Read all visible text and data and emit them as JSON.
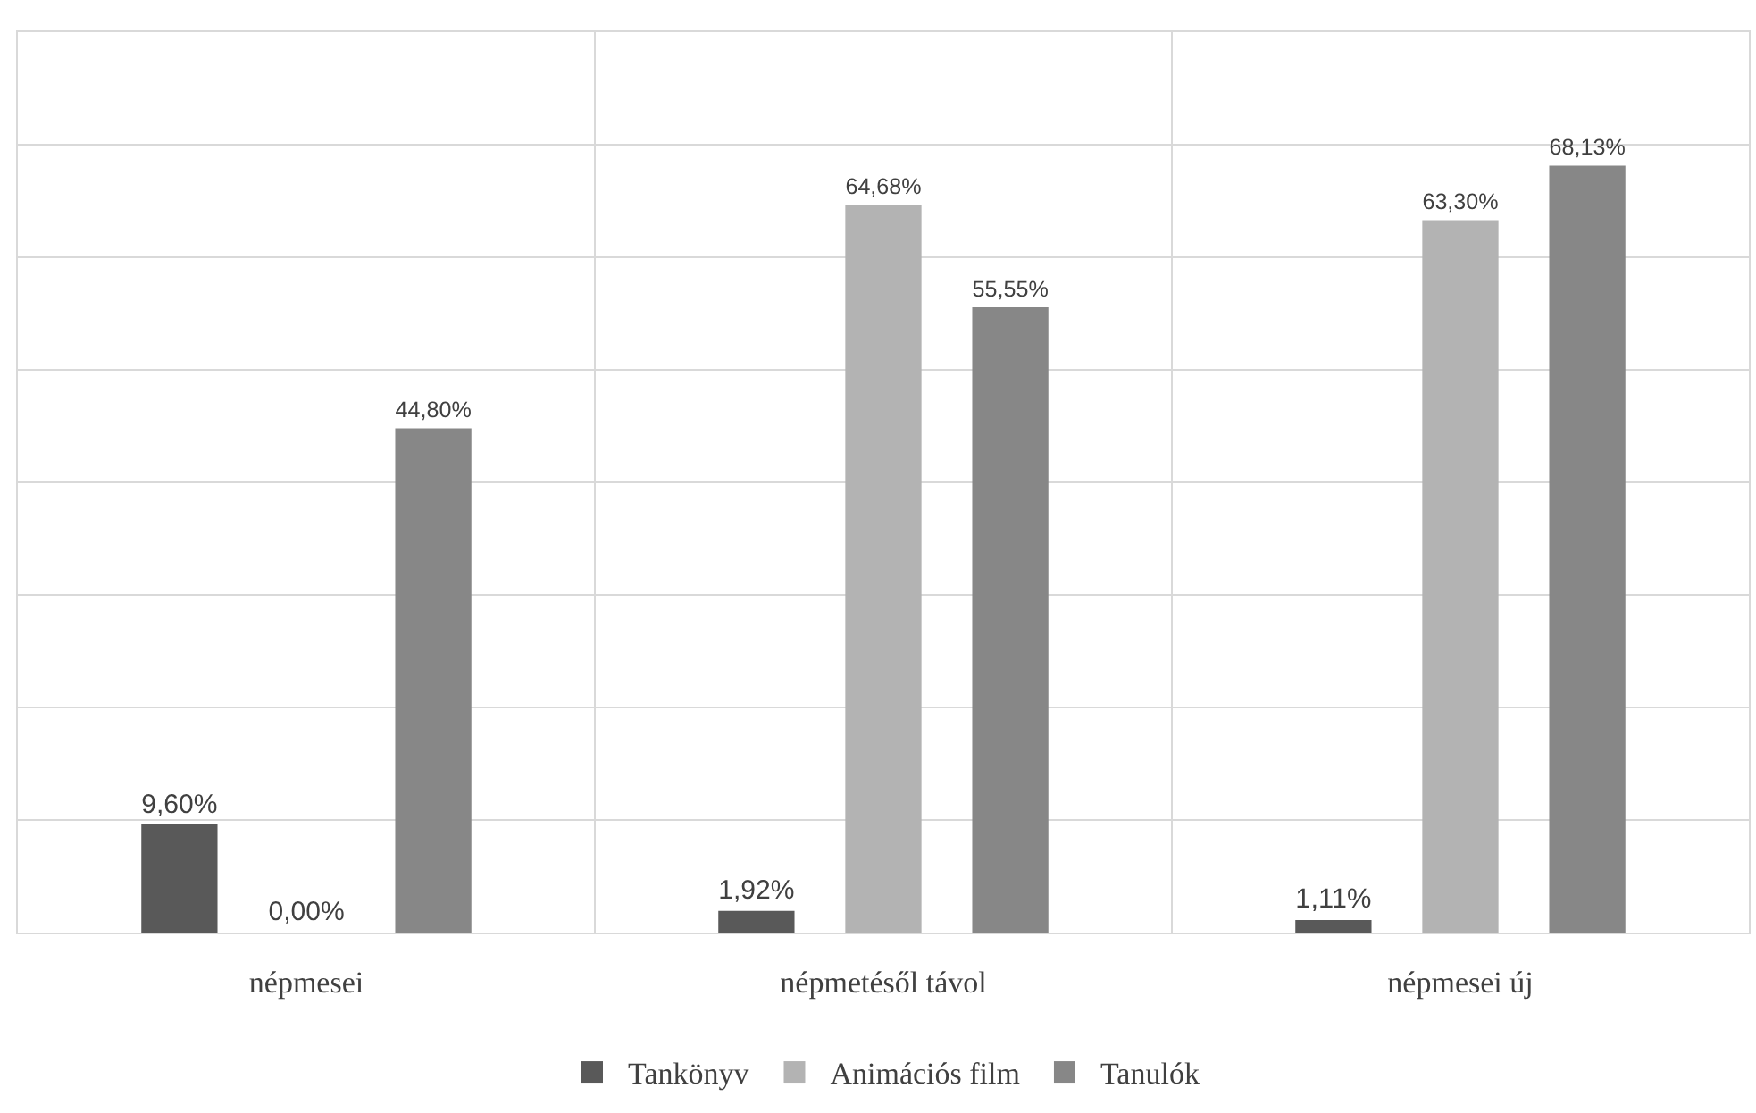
{
  "chart_data": {
    "type": "bar",
    "categories": [
      "népmesei",
      "népmetésől távol",
      "népmesei új"
    ],
    "series": [
      {
        "name": "Tankönyv",
        "color": "#595959",
        "values": [
          9.6,
          1.92,
          1.11
        ],
        "value_labels": [
          "9,60%",
          "1,92%",
          "1,11%"
        ]
      },
      {
        "name": "Animációs film",
        "color": "#b3b3b3",
        "values": [
          0,
          64.68,
          63.3
        ],
        "value_labels": [
          "0,00%",
          "64,68%",
          "63,30%"
        ]
      },
      {
        "name": "Tanulók",
        "color": "#878787",
        "values": [
          44.8,
          55.55,
          68.13
        ],
        "value_labels": [
          "44,80%",
          "55,55%",
          "68,13%"
        ]
      }
    ],
    "ylim": [
      0,
      80
    ],
    "yticks": [
      {
        "value": 0,
        "label": null
      },
      {
        "value": 10,
        "label": null
      },
      {
        "value": 20,
        "label": null
      },
      {
        "value": 30,
        "label": null
      },
      {
        "value": 40,
        "label": null
      },
      {
        "value": 50,
        "label": null
      },
      {
        "value": 60,
        "label": null
      },
      {
        "value": 70,
        "label": null
      },
      {
        "value": 80,
        "label": null
      }
    ],
    "tick_labels": "x",
    "grid": true,
    "legend": "bottom"
  }
}
